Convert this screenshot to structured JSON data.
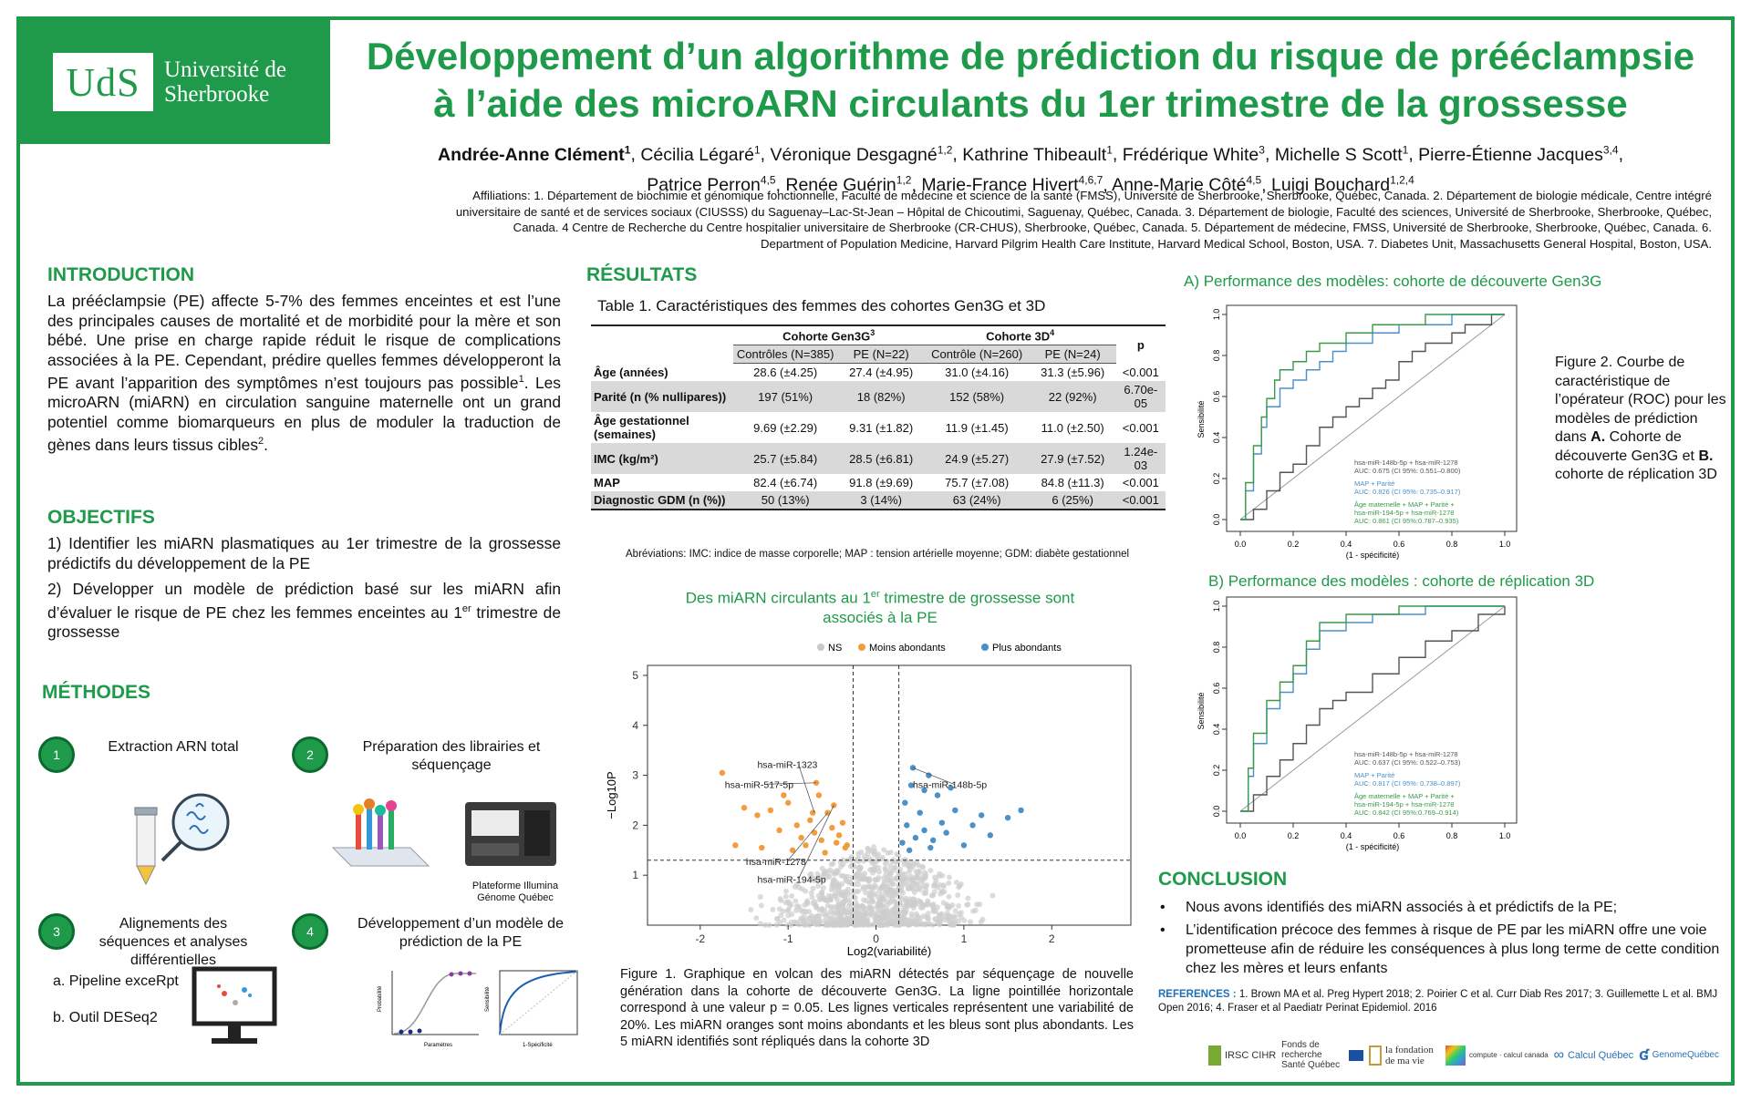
{
  "logo": {
    "short": "UdS",
    "name_line1": "Université de",
    "name_line2": "Sherbrooke"
  },
  "title_line1": "Développement d’un algorithme de prédiction du risque de prééclampsie",
  "title_line2": "à l’aide des microARN circulants du 1er trimestre de la grossesse",
  "authors_line1": [
    {
      "name": "Andrée-Anne Clément",
      "sup": "1",
      "bold": true
    },
    {
      "name": "Cécilia Légaré",
      "sup": "1"
    },
    {
      "name": "Véronique Desgagné",
      "sup": "1,2"
    },
    {
      "name": "Kathrine Thibeault",
      "sup": "1"
    },
    {
      "name": "Frédérique White",
      "sup": "3"
    },
    {
      "name": "Michelle S Scott",
      "sup": "1"
    },
    {
      "name": "Pierre-Étienne Jacques",
      "sup": "3,4"
    }
  ],
  "authors_line2": [
    {
      "name": "Patrice Perron",
      "sup": "4,5"
    },
    {
      "name": "Renée Guérin",
      "sup": "1,2"
    },
    {
      "name": "Marie-France Hivert",
      "sup": "4,6,7"
    },
    {
      "name": "Anne-Marie Côté",
      "sup": "4,5"
    },
    {
      "name": "Luigi Bouchard",
      "sup": "1,2,4"
    }
  ],
  "affiliations": [
    "Affiliations: 1. Département de biochimie et génomique fonctionnelle, Faculté de médecine et science de la santé (FMSS), Université de Sherbrooke, Sherbrooke, Québec, Canada. 2. Département de biologie médicale, Centre intégré",
    "universitaire de santé et de services sociaux (CIUSSS) du Saguenay–Lac-St-Jean – Hôpital de Chicoutimi, Saguenay, Québec, Canada. 3. Département de biologie, Faculté des sciences, Université de Sherbrooke, Sherbrooke, Québec,",
    "Canada. 4 Centre de Recherche du Centre hospitalier universitaire de Sherbrooke (CR-CHUS), Sherbrooke, Québec, Canada. 5. Département de médecine, FMSS, Université de Sherbrooke, Sherbrooke, Québec, Canada. 6.",
    "Department of Population Medicine, Harvard Pilgrim Health Care Institute, Harvard Medical School, Boston, USA. 7. Diabetes Unit, Massachusetts General Hospital, Boston, USA."
  ],
  "intro": {
    "heading": "INTRODUCTION",
    "text_before": "La prééclampsie (PE) affecte 5-7% des femmes enceintes et est l’une des principales causes de mortalité et de morbidité pour la mère et son bébé. Une prise en charge rapide réduit le risque de complications associées à la PE. Cependant, prédire quelles femmes développeront la PE avant l’apparition des symptômes n’est toujours pas possible",
    "sup1": "1",
    "text_after": ". Les microARN (miARN) en circulation sanguine maternelle ont un grand potentiel comme biomarqueurs en plus de moduler la traduction de gènes dans leurs tissus cibles",
    "sup2": "2",
    "end": "."
  },
  "objectifs": {
    "heading": "OBJECTIFS",
    "item1": "1) Identifier les miARN plasmatiques au 1er trimestre de la grossesse prédictifs du développement de la PE",
    "item2_before": "2) Développer un modèle de prédiction basé sur les miARN afin d’évaluer le risque de PE chez les femmes enceintes au 1",
    "item2_sup": "er",
    "item2_after": " trimestre de grossesse"
  },
  "methodes": {
    "heading": "MÉTHODES",
    "steps": [
      {
        "num": "1",
        "label": "Extraction ARN total"
      },
      {
        "num": "2",
        "label": "Préparation des librairies et séquençage"
      },
      {
        "num": "3",
        "label": "Alignements des séquences et analyses différentielles"
      },
      {
        "num": "4",
        "label": "Développement d’un modèle de prédiction de la PE"
      }
    ],
    "platform_line1": "Plateforme Illumina",
    "platform_line2": "Génome Québec",
    "pipeline_a": "a. Pipeline exceRpt",
    "pipeline_b": "b. Outil DESeq2",
    "mini_x1": "Paramètres",
    "mini_y1": "Probabilité",
    "mini_x2": "1-Spécificité",
    "mini_y2": "Sensibilité"
  },
  "resultats": {
    "heading": "RÉSULTATS"
  },
  "table": {
    "caption": "Table 1. Caractéristiques des femmes des cohortes Gen3G et 3D",
    "cohort1": "Cohorte Gen3G",
    "cohort1_sup": "3",
    "cohort2": "Cohorte 3D",
    "cohort2_sup": "4",
    "p_header": "p",
    "sub_headers": [
      "Contrôles (N=385)",
      "PE (N=22)",
      "Contrôle (N=260)",
      "PE (N=24)"
    ],
    "rows": [
      {
        "label": "Âge (années)",
        "v": [
          "28.6 (±4.25)",
          "27.4 (±4.95)",
          "31.0 (±4.16)",
          "31.3 (±5.96)"
        ],
        "p": "<0.001",
        "shade": false
      },
      {
        "label": "Parité (n (% nullipares))",
        "v": [
          "197 (51%)",
          "18 (82%)",
          "152 (58%)",
          "22 (92%)"
        ],
        "p": "6.70e-05",
        "shade": true
      },
      {
        "label": "Âge gestationnel (semaines)",
        "v": [
          "9.69 (±2.29)",
          "9.31 (±1.82)",
          "11.9 (±1.45)",
          "11.0 (±2.50)"
        ],
        "p": "<0.001",
        "shade": false
      },
      {
        "label": "IMC (kg/m²)",
        "v": [
          "25.7 (±5.84)",
          "28.5 (±6.81)",
          "24.9 (±5.27)",
          "27.9 (±7.52)"
        ],
        "p": "1.24e-03",
        "shade": true
      },
      {
        "label": "MAP",
        "v": [
          "82.4 (±6.74)",
          "91.8 (±9.69)",
          "75.7 (±7.08)",
          "84.8 (±11.3)"
        ],
        "p": "<0.001",
        "shade": false
      },
      {
        "label": "Diagnostic GDM (n (%))",
        "v": [
          "50 (13%)",
          "3 (14%)",
          "63 (24%)",
          "6 (25%)"
        ],
        "p": "<0.001",
        "shade": true
      }
    ],
    "abbrev": "Abréviations: IMC: indice de masse corporelle; MAP : tension artérielle moyenne; GDM: diabète gestationnel"
  },
  "volcano_title_before": "Des miARN circulants au 1",
  "volcano_title_sup": "er",
  "volcano_title_after": " trimestre de grossesse sont",
  "volcano_title_line2": "associés à la PE",
  "chart_data": [
    {
      "type": "scatter",
      "title": "",
      "xlabel": "Log2(variabilité)",
      "ylabel": "−Log10P",
      "xlim": [
        -2.6,
        2.9
      ],
      "ylim": [
        0,
        5.2
      ],
      "xticks": [
        -2,
        -1,
        0,
        1,
        2
      ],
      "yticks": [
        1,
        2,
        3,
        4,
        5
      ],
      "legend": [
        "NS",
        "Moins abondants",
        "Plus abondants"
      ],
      "legend_colors": [
        "#c8c8c8",
        "#f39c3d",
        "#4a90c9"
      ],
      "threshold_y": 1.3,
      "threshold_x": [
        -0.26,
        0.26
      ],
      "points_orange": [
        [
          -1.75,
          3.05
        ],
        [
          -1.5,
          2.35
        ],
        [
          -1.35,
          2.2
        ],
        [
          -1.2,
          2.3
        ],
        [
          -1.1,
          1.9
        ],
        [
          -1.0,
          2.45
        ],
        [
          -0.9,
          2.0
        ],
        [
          -0.85,
          1.75
        ],
        [
          -0.75,
          2.1
        ],
        [
          -0.7,
          1.85
        ],
        [
          -0.65,
          2.6
        ],
        [
          -0.62,
          1.7
        ],
        [
          -0.55,
          2.25
        ],
        [
          -0.5,
          1.95
        ],
        [
          -0.45,
          1.65
        ],
        [
          -0.42,
          1.8
        ],
        [
          -0.38,
          2.05
        ],
        [
          -0.35,
          1.55
        ],
        [
          -1.6,
          1.6
        ],
        [
          -1.3,
          1.55
        ],
        [
          -0.95,
          1.5
        ],
        [
          -0.58,
          1.45
        ],
        [
          -0.8,
          1.6
        ],
        [
          -1.05,
          2.6
        ],
        [
          -0.68,
          2.85
        ],
        [
          -0.33,
          1.6
        ],
        [
          -0.48,
          2.4
        ],
        [
          -0.72,
          2.25
        ]
      ],
      "points_blue": [
        [
          0.3,
          1.65
        ],
        [
          0.35,
          2.0
        ],
        [
          0.4,
          2.8
        ],
        [
          0.45,
          1.75
        ],
        [
          0.5,
          2.25
        ],
        [
          0.55,
          1.9
        ],
        [
          0.6,
          3.0
        ],
        [
          0.65,
          1.7
        ],
        [
          0.7,
          2.6
        ],
        [
          0.75,
          2.05
        ],
        [
          0.8,
          1.85
        ],
        [
          0.9,
          2.3
        ],
        [
          1.0,
          1.6
        ],
        [
          1.1,
          2.0
        ],
        [
          1.2,
          2.2
        ],
        [
          1.3,
          1.8
        ],
        [
          1.5,
          2.15
        ],
        [
          0.33,
          2.45
        ],
        [
          0.42,
          3.15
        ],
        [
          0.55,
          2.7
        ],
        [
          0.85,
          2.75
        ],
        [
          1.65,
          2.3
        ],
        [
          0.62,
          1.55
        ],
        [
          0.38,
          1.5
        ]
      ],
      "annotations": [
        "hsa-miR-1323",
        "hsa-miR-517-5p",
        "hsa-miR-148b-5p",
        "hsa-miR-1278",
        "hsa-miR-194-5p"
      ]
    },
    {
      "type": "line",
      "title": "A) Performance des modèles: cohorte de découverte Gen3G",
      "xlabel": "(1 - spécificité)",
      "ylabel": "Sensibilité",
      "xlim": [
        0,
        1
      ],
      "ylim": [
        0,
        1
      ],
      "ticks": [
        "0.0",
        "0.2",
        "0.4",
        "0.6",
        "0.8",
        "1.0"
      ],
      "series": [
        {
          "name": "hsa-miR-148b-5p + hsa-miR-1278",
          "auc": "AUC: 0.675 (CI 95%: 0.551–0.800)",
          "color": "#555555",
          "x": [
            0,
            0.05,
            0.1,
            0.15,
            0.2,
            0.25,
            0.3,
            0.35,
            0.4,
            0.45,
            0.5,
            0.55,
            0.6,
            0.65,
            0.7,
            0.75,
            0.8,
            0.85,
            0.9,
            0.95,
            1.0
          ],
          "y": [
            0,
            0.05,
            0.14,
            0.23,
            0.27,
            0.36,
            0.45,
            0.5,
            0.55,
            0.59,
            0.64,
            0.68,
            0.77,
            0.82,
            0.86,
            0.86,
            0.91,
            0.95,
            0.95,
            1.0,
            1.0
          ]
        },
        {
          "name": "MAP + Parité",
          "auc": "AUC: 0.826 (CI 95%: 0.735–0.917)",
          "color": "#4a90c9",
          "x": [
            0,
            0.02,
            0.05,
            0.08,
            0.1,
            0.15,
            0.2,
            0.25,
            0.3,
            0.35,
            0.4,
            0.5,
            0.6,
            0.7,
            0.8,
            0.9,
            1.0
          ],
          "y": [
            0,
            0.14,
            0.32,
            0.45,
            0.55,
            0.64,
            0.68,
            0.73,
            0.77,
            0.82,
            0.86,
            0.91,
            0.95,
            0.95,
            1.0,
            1.0,
            1.0
          ]
        },
        {
          "name": "Âge maternelle + MAP + Parité + hsa-miR-194-5p + hsa-miR-1278",
          "auc": "AUC: 0.861 (CI 95%:0.787–0.935)",
          "color": "#3a9a4a",
          "x": [
            0,
            0.02,
            0.05,
            0.08,
            0.1,
            0.13,
            0.15,
            0.2,
            0.25,
            0.3,
            0.4,
            0.5,
            0.6,
            0.7,
            0.8,
            0.9,
            1.0
          ],
          "y": [
            0,
            0.18,
            0.36,
            0.5,
            0.59,
            0.68,
            0.73,
            0.77,
            0.82,
            0.86,
            0.91,
            0.95,
            0.95,
            1.0,
            1.0,
            1.0,
            1.0
          ]
        }
      ]
    },
    {
      "type": "line",
      "title": "B) Performance des modèles : cohorte de réplication 3D",
      "xlabel": "(1 - spécificité)",
      "ylabel": "Sensibilité",
      "xlim": [
        0,
        1
      ],
      "ylim": [
        0,
        1
      ],
      "ticks": [
        "0.0",
        "0.2",
        "0.4",
        "0.6",
        "0.8",
        "1.0"
      ],
      "series": [
        {
          "name": "hsa-miR-148b-5p + hsa-miR-1278",
          "auc": "AUC: 0.637 (CI 95%: 0.522–0.753)",
          "color": "#555555",
          "x": [
            0,
            0.05,
            0.1,
            0.15,
            0.2,
            0.25,
            0.3,
            0.35,
            0.4,
            0.5,
            0.6,
            0.7,
            0.8,
            0.9,
            1.0
          ],
          "y": [
            0,
            0.08,
            0.17,
            0.25,
            0.33,
            0.42,
            0.5,
            0.54,
            0.58,
            0.67,
            0.75,
            0.83,
            0.88,
            0.96,
            1.0
          ]
        },
        {
          "name": "MAP + Parité",
          "auc": "AUC: 0.817 (CI 95%: 0.738–0.897)",
          "color": "#4a90c9",
          "x": [
            0,
            0.03,
            0.05,
            0.1,
            0.15,
            0.2,
            0.25,
            0.3,
            0.4,
            0.5,
            0.6,
            0.7,
            0.8,
            0.9,
            1.0
          ],
          "y": [
            0,
            0.17,
            0.33,
            0.5,
            0.58,
            0.67,
            0.79,
            0.88,
            0.92,
            0.96,
            0.96,
            1.0,
            1.0,
            1.0,
            1.0
          ]
        },
        {
          "name": "Âge maternelle + MAP + Parité + hsa-miR-194-5p + hsa-miR-1278",
          "auc": "AUC: 0.842 (CI 95%:0.769–0.914)",
          "color": "#3a9a4a",
          "x": [
            0,
            0.03,
            0.05,
            0.1,
            0.15,
            0.2,
            0.25,
            0.3,
            0.4,
            0.5,
            0.6,
            0.7,
            0.8,
            0.9,
            1.0
          ],
          "y": [
            0,
            0.21,
            0.38,
            0.54,
            0.63,
            0.71,
            0.83,
            0.92,
            0.96,
            0.96,
            1.0,
            1.0,
            1.0,
            1.0,
            1.0
          ]
        }
      ]
    }
  ],
  "figure1_caption": "Figure 1. Graphique en volcan des miARN détectés par séquençage de nouvelle génération dans la cohorte de découverte Gen3G. La ligne pointillée horizontale correspond à une valeur p = 0.05. Les lignes verticales représentent une variabilité de 20%. Les miARN oranges sont moins abondants et les bleus sont plus abondants. Les 5 miARN identifiés sont répliqués dans la cohorte 3D",
  "figure2_caption_parts": [
    "Figure 2. Courbe de caractéristique de l’opérateur (ROC) pour les modèles de prédiction dans ",
    "A.",
    " Cohorte de découverte Gen3G et ",
    "B.",
    " cohorte de réplication 3D"
  ],
  "conclusion": {
    "heading": "CONCLUSION",
    "bullets": [
      "Nous avons identifiés des miARN associés à et prédictifs de la PE;",
      "L’identification précoce des femmes à risque de PE par les miARN offre une voie prometteuse afin de réduire les conséquences à plus long terme de cette condition chez les mères et leurs enfants"
    ]
  },
  "references": {
    "label": "REFERENCES :",
    "text": " 1. Brown MA et al. Preg Hypert 2018; 2. Poirier C et al. Curr Diab Res 2017; 3. Guillemette L et al. BMJ Open 2016; 4. Fraser et al Paediatr Perinat Epidemiol. 2016"
  },
  "sponsors": [
    "IRSC CIHR",
    "Fonds de recherche Santé Québec",
    "la fondation de ma vie",
    "compute · calcul canada",
    "Calcul Québec",
    "GenomeQuébec"
  ]
}
